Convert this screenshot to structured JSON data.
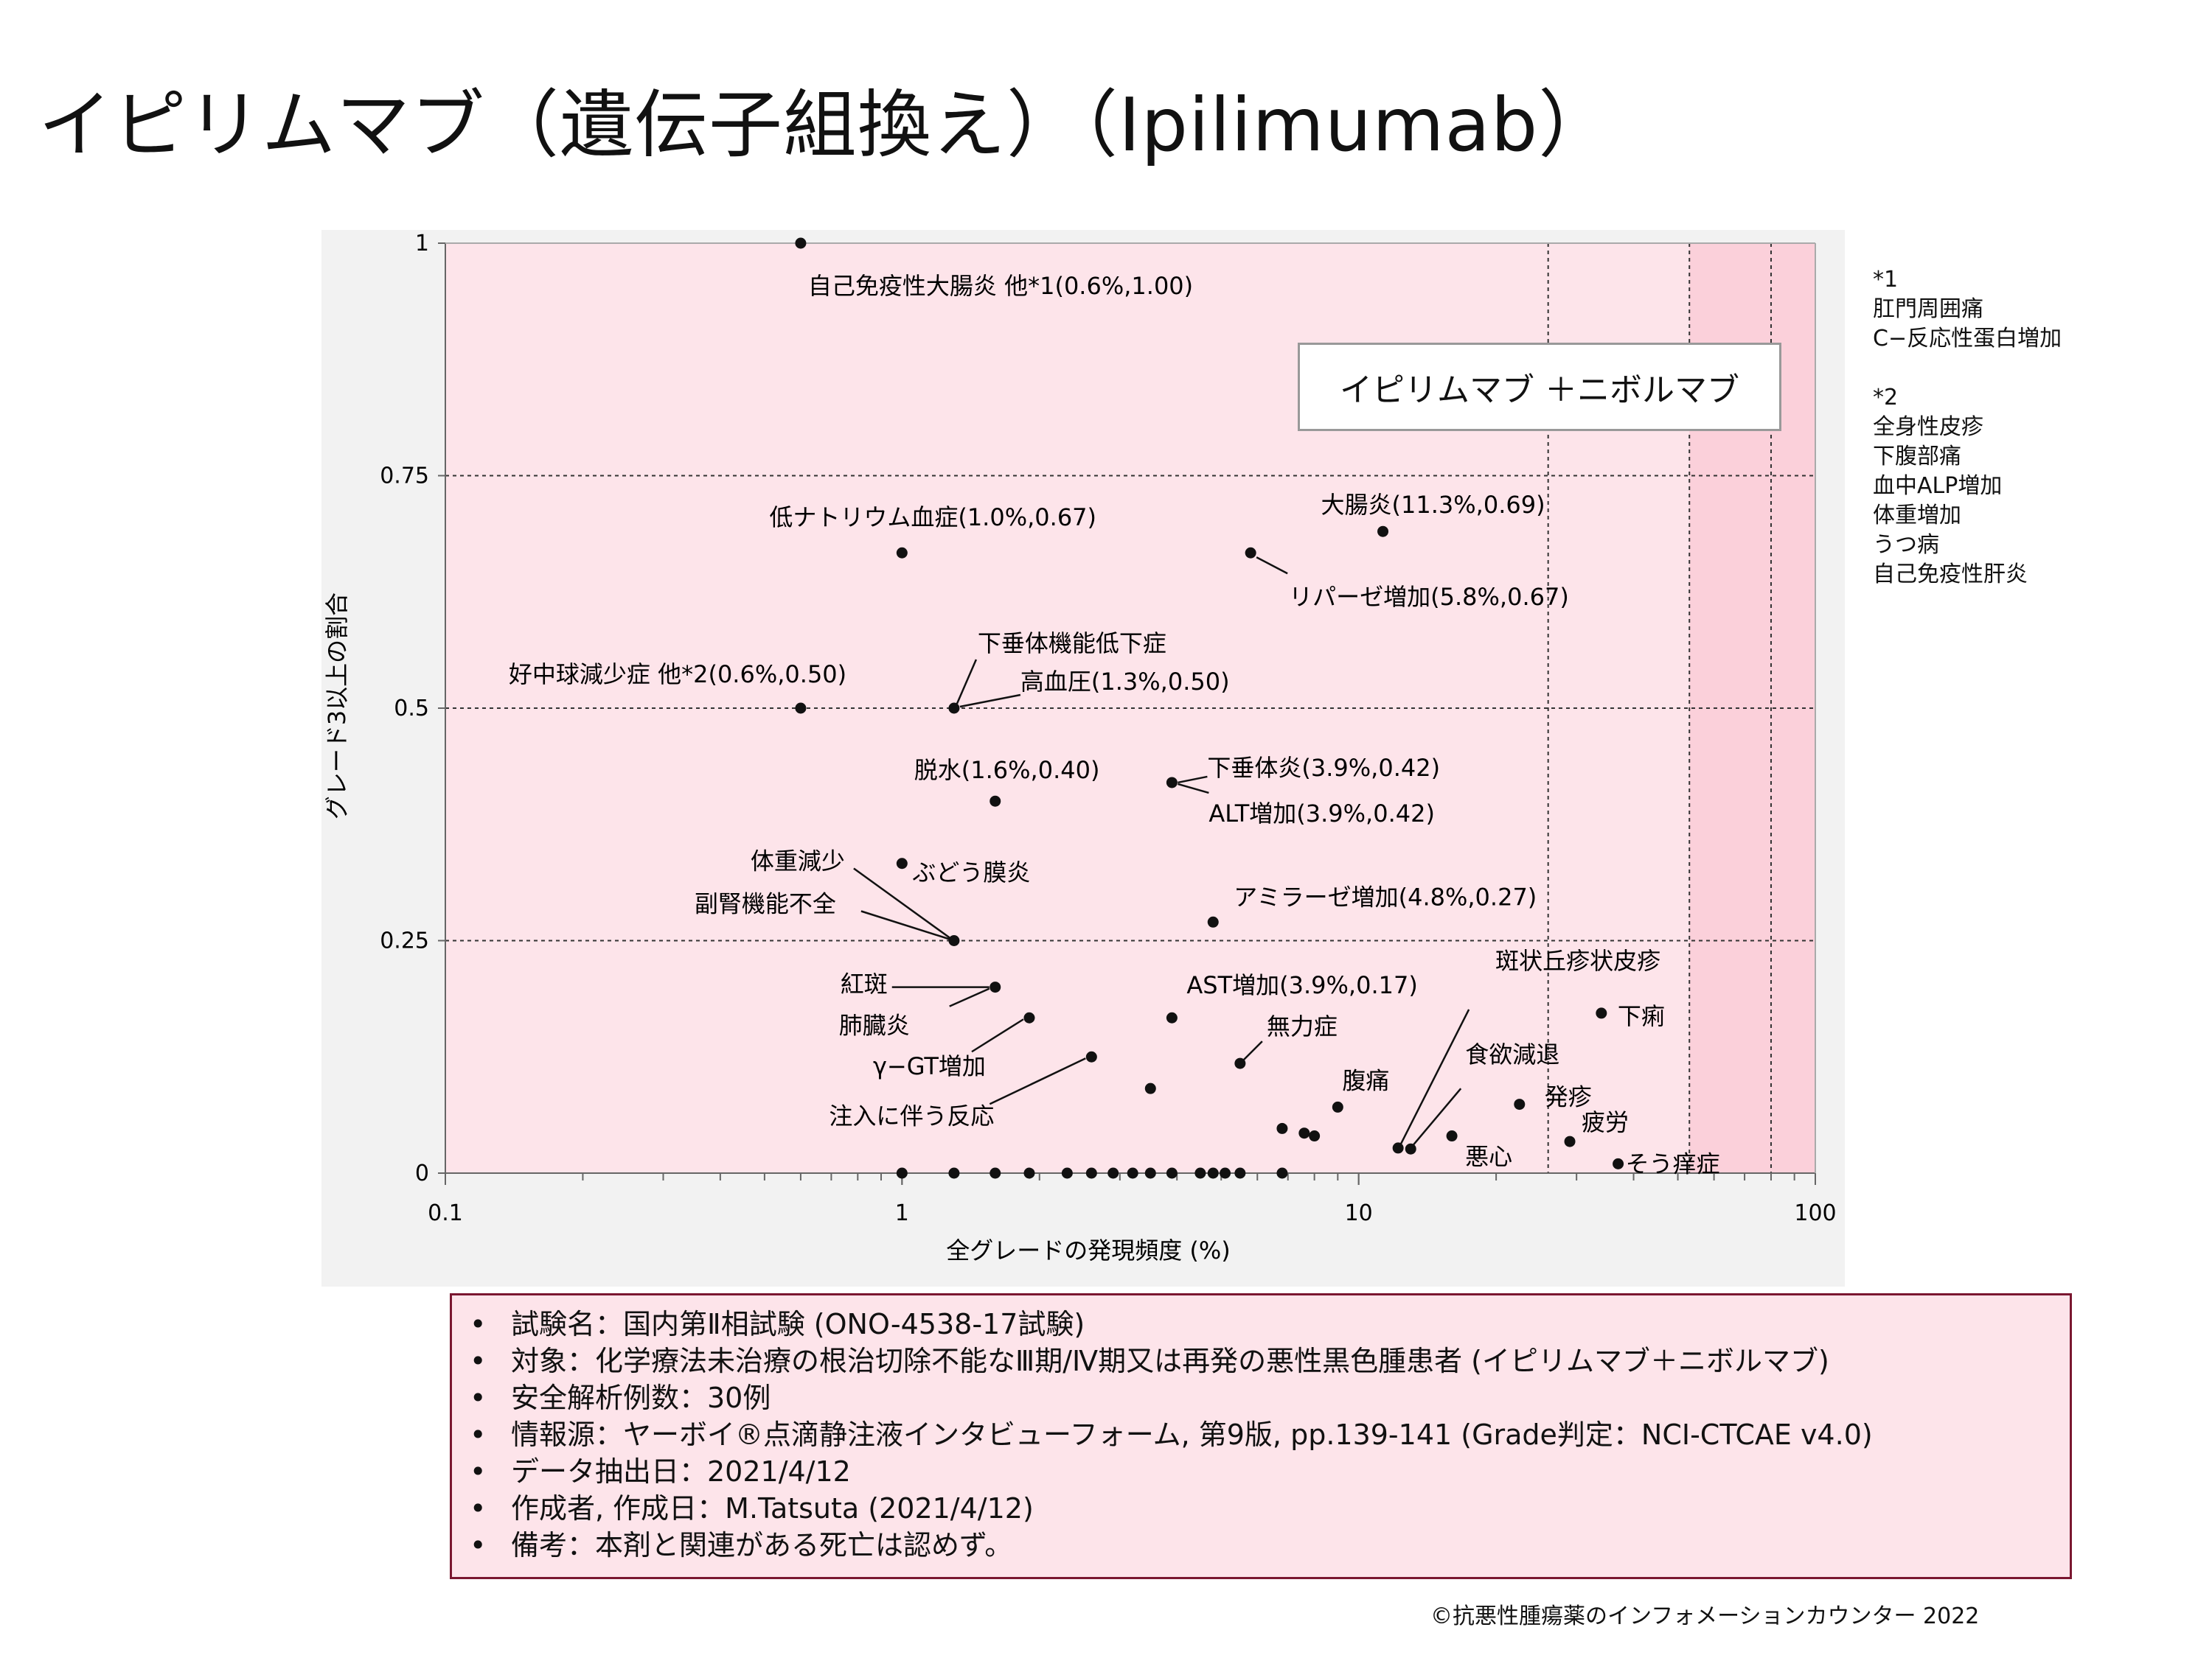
{
  "page": {
    "title": "イピリムマブ（遺伝子組換え）（Ipilimumab）",
    "footnotes": [
      {
        "mark": "*1",
        "items": [
          "肛門周囲痛",
          "C−反応性蛋白増加"
        ]
      },
      {
        "mark": "*2",
        "items": [
          "全身性皮疹",
          "下腹部痛",
          "血中ALP増加",
          "体重増加",
          "うつ病",
          "自己免疫性肝炎"
        ]
      }
    ],
    "info": [
      "試験名：国内第Ⅱ相試験 (ONO-4538-17試験)",
      "対象：化学療法未治療の根治切除不能なⅢ期/Ⅳ期又は再発の悪性黒色腫患者 (イピリムマブ＋ニボルマブ)",
      "安全解析例数：30例",
      "情報源：ヤーボイ®点滴静注液インタビューフォーム, 第9版, pp.139-141 (Grade判定：NCI-CTCAE v4.0)",
      "データ抽出日：2021/4/12",
      "作成者, 作成日：M.Tatsuta (2021/4/12)",
      "備考：本剤と関連がある死亡は認めず。"
    ],
    "copyright": "©抗悪性腫瘍薬のインフォメーションカウンター 2022"
  },
  "chart_data": {
    "type": "scatter",
    "xscale": "log",
    "xlim": [
      0.1,
      100
    ],
    "ylim": [
      0,
      1
    ],
    "xlabel": "全グレードの発現頻度 (%)",
    "ylabel": "グレード3以上の割合",
    "legend": "イピリムマブ ＋ニボルマブ",
    "xticks": [
      {
        "v": 0.1,
        "label": "0.1"
      },
      {
        "v": 1,
        "label": "1"
      },
      {
        "v": 10,
        "label": "10"
      },
      {
        "v": 100,
        "label": "100"
      }
    ],
    "yticks": [
      {
        "v": 0,
        "label": "0"
      },
      {
        "v": 0.25,
        "label": "0.25"
      },
      {
        "v": 0.5,
        "label": "0.5"
      },
      {
        "v": 0.75,
        "label": "0.75"
      },
      {
        "v": 1,
        "label": "1"
      }
    ],
    "grid": {
      "y": [
        0.25,
        0.5,
        0.75
      ],
      "x": [
        26,
        53,
        80
      ]
    },
    "colors": {
      "background": "#fde4ea",
      "band": "#fbd0da",
      "point": "#111111",
      "grid": "#333333"
    },
    "points": [
      {
        "x": 0.6,
        "y": 1.0
      },
      {
        "x": 1.0,
        "y": 0.667
      },
      {
        "x": 5.8,
        "y": 0.667
      },
      {
        "x": 11.3,
        "y": 0.69
      },
      {
        "x": 0.6,
        "y": 0.5
      },
      {
        "x": 1.3,
        "y": 0.5
      },
      {
        "x": 1.6,
        "y": 0.4
      },
      {
        "x": 3.9,
        "y": 0.42
      },
      {
        "x": 1.0,
        "y": 0.333
      },
      {
        "x": 1.3,
        "y": 0.25
      },
      {
        "x": 4.8,
        "y": 0.27
      },
      {
        "x": 1.6,
        "y": 0.2
      },
      {
        "x": 1.9,
        "y": 0.167
      },
      {
        "x": 3.9,
        "y": 0.167
      },
      {
        "x": 2.6,
        "y": 0.125
      },
      {
        "x": 5.5,
        "y": 0.118
      },
      {
        "x": 3.5,
        "y": 0.091
      },
      {
        "x": 9.0,
        "y": 0.071
      },
      {
        "x": 22.5,
        "y": 0.074
      },
      {
        "x": 34.0,
        "y": 0.172
      },
      {
        "x": 6.8,
        "y": 0.048
      },
      {
        "x": 7.6,
        "y": 0.043
      },
      {
        "x": 8.0,
        "y": 0.04
      },
      {
        "x": 12.2,
        "y": 0.027
      },
      {
        "x": 13.0,
        "y": 0.026
      },
      {
        "x": 16.0,
        "y": 0.04
      },
      {
        "x": 29.0,
        "y": 0.034
      },
      {
        "x": 37.0,
        "y": 0.01
      },
      {
        "x": 1.0,
        "y": 0
      },
      {
        "x": 1.3,
        "y": 0
      },
      {
        "x": 1.6,
        "y": 0
      },
      {
        "x": 1.9,
        "y": 0
      },
      {
        "x": 2.3,
        "y": 0
      },
      {
        "x": 2.6,
        "y": 0
      },
      {
        "x": 2.9,
        "y": 0
      },
      {
        "x": 3.2,
        "y": 0
      },
      {
        "x": 3.5,
        "y": 0
      },
      {
        "x": 3.9,
        "y": 0
      },
      {
        "x": 4.5,
        "y": 0
      },
      {
        "x": 4.8,
        "y": 0
      },
      {
        "x": 5.1,
        "y": 0
      },
      {
        "x": 5.5,
        "y": 0
      },
      {
        "x": 6.8,
        "y": 0
      }
    ],
    "annotations": [
      {
        "text": "自己免疫性大腸炎 他*1(0.6%,1.00)",
        "x": 0.6,
        "y": 1.0,
        "dx": 10,
        "dy": 58
      },
      {
        "text": "低ナトリウム血症(1.0%,0.67)",
        "x": 1.0,
        "y": 0.667,
        "dx": -180,
        "dy": -48
      },
      {
        "text": "大腸炎(11.3%,0.69)",
        "x": 11.3,
        "y": 0.69,
        "dx": -84,
        "dy": -36
      },
      {
        "text": "リパーゼ増加(5.8%,0.67)",
        "x": 5.8,
        "y": 0.667,
        "dx": 52,
        "dy": 60,
        "line": [
          8,
          6,
          50,
          28
        ]
      },
      {
        "text": "好中球減少症 他*2(0.6%,0.50)",
        "x": 0.6,
        "y": 0.5,
        "dx": -396,
        "dy": -46
      },
      {
        "text": "下垂体機能低下症",
        "x": 1.3,
        "y": 0.5,
        "dx": 32,
        "dy": -88,
        "line": [
          4,
          -6,
          30,
          -66
        ]
      },
      {
        "text": "高血圧(1.3%,0.50)",
        "x": 1.3,
        "y": 0.5,
        "dx": 90,
        "dy": -36,
        "line": [
          8,
          -2,
          90,
          -18
        ]
      },
      {
        "text": "脱水(1.6%,0.40)",
        "x": 1.6,
        "y": 0.4,
        "dx": -110,
        "dy": -42
      },
      {
        "text": "下垂体炎(3.9%,0.42)",
        "x": 3.9,
        "y": 0.42,
        "dx": 48,
        "dy": -20,
        "line": [
          8,
          0,
          48,
          -8
        ]
      },
      {
        "text": "ALT増加(3.9%,0.42)",
        "x": 3.9,
        "y": 0.42,
        "dx": 50,
        "dy": 42,
        "line": [
          8,
          2,
          50,
          14
        ]
      },
      {
        "text": "ぶどう膜炎",
        "x": 1.0,
        "y": 0.333,
        "dx": 14,
        "dy": 12
      },
      {
        "text": "体重減少",
        "x": 1.3,
        "y": 0.25,
        "dx": -276,
        "dy": -108,
        "line": [
          -6,
          -4,
          -136,
          -98
        ]
      },
      {
        "text": "副腎機能不全",
        "x": 1.3,
        "y": 0.25,
        "dx": -352,
        "dy": -50,
        "line": [
          -6,
          -2,
          -126,
          -40
        ]
      },
      {
        "text": "アミラーゼ増加(4.8%,0.27)",
        "x": 4.8,
        "y": 0.27,
        "dx": 28,
        "dy": -34
      },
      {
        "text": "紅斑",
        "x": 1.6,
        "y": 0.2,
        "dx": -210,
        "dy": -4,
        "line": [
          -8,
          0,
          -140,
          0
        ]
      },
      {
        "text": "肺臓炎",
        "x": 1.6,
        "y": 0.2,
        "dx": -212,
        "dy": 52,
        "line": [
          -8,
          2,
          -62,
          26
        ]
      },
      {
        "text": "AST増加(3.9%,0.17)",
        "x": 3.9,
        "y": 0.167,
        "dx": 20,
        "dy": -44
      },
      {
        "text": "γ−GT増加",
        "x": 1.9,
        "y": 0.167,
        "dx": -212,
        "dy": 66,
        "line": [
          -8,
          2,
          -78,
          46
        ]
      },
      {
        "text": "注入に伴う反応",
        "x": 2.6,
        "y": 0.125,
        "dx": -356,
        "dy": 80,
        "line": [
          -8,
          2,
          -138,
          64
        ]
      },
      {
        "text": "無力症",
        "x": 5.5,
        "y": 0.118,
        "dx": 36,
        "dy": -50,
        "line": [
          4,
          -4,
          30,
          -30
        ]
      },
      {
        "text": "腹痛",
        "x": 9.0,
        "y": 0.071,
        "dx": 6,
        "dy": -36
      },
      {
        "text": "斑状丘疹状皮疹",
        "x": 12.2,
        "y": 0.027,
        "dx": 132,
        "dy": -254,
        "line": [
          4,
          -6,
          96,
          -188
        ]
      },
      {
        "text": "食欲減退",
        "x": 13.0,
        "y": 0.026,
        "dx": 74,
        "dy": -128,
        "line": [
          4,
          -6,
          68,
          -82
        ]
      },
      {
        "text": "下痢",
        "x": 34.0,
        "y": 0.172,
        "dx": 22,
        "dy": 4
      },
      {
        "text": "発疹",
        "x": 22.5,
        "y": 0.074,
        "dx": 34,
        "dy": -10
      },
      {
        "text": "疲労",
        "x": 29.0,
        "y": 0.034,
        "dx": 16,
        "dy": -26
      },
      {
        "text": "悪心",
        "x": 16.0,
        "y": 0.04,
        "dx": 18,
        "dy": 28
      },
      {
        "text": "そう痒症",
        "x": 37.0,
        "y": 0.01,
        "dx": 10,
        "dy": 0
      }
    ]
  }
}
